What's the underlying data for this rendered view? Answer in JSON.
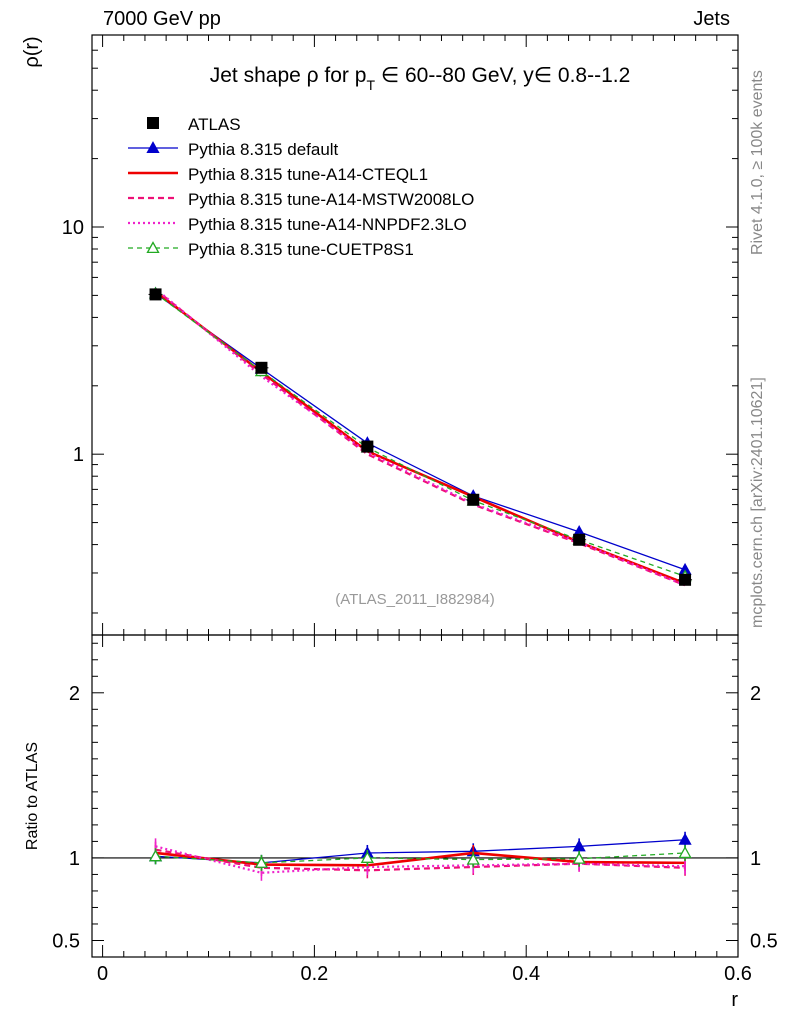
{
  "header": {
    "left": "7000 GeV pp",
    "right": "Jets"
  },
  "side_labels": {
    "rivet": "Rivet 4.1.0, ≥ 100k events",
    "mcplots": "mcplots.cern.ch [arXiv:2401.10621]"
  },
  "colors": {
    "atlas": "#000000",
    "default": "#0000cc",
    "cteql1": "#ee0000",
    "mstw": "#ee1177",
    "nnpdf": "#ee22cc",
    "cuetp8s1": "#22aa22",
    "ref_label": "#999999"
  },
  "chart_data": {
    "type": "line",
    "title": "Jet shape ρ for p_T ∈ 60--80 GeV, y∈ 0.8--1.2",
    "title_parts": {
      "pre": "Jet shape ρ for p",
      "sub": "T",
      "post": " ∈ 60--80 GeV, y∈ 0.8--1.2"
    },
    "ylabel": "ρ(r)",
    "xlabel": "r",
    "ratio_ylabel": "Ratio to ATLAS",
    "ref_label": "(ATLAS_2011_I882984)",
    "x": [
      0.05,
      0.15,
      0.25,
      0.35,
      0.45,
      0.55
    ],
    "xlim": [
      -0.01,
      0.6
    ],
    "ylim": [
      0.16,
      70
    ],
    "yscale": "log",
    "ratio_ylim": [
      0.4,
      2.35
    ],
    "x_ticks": [
      "0",
      "0.2",
      "0.4",
      "0.6"
    ],
    "y_ticks": [
      "1",
      "10"
    ],
    "ratio_ticks": [
      "0.5",
      "1",
      "2"
    ],
    "series": [
      {
        "name": "ATLAS",
        "style": "data",
        "color": "atlas",
        "marker": "square",
        "values": [
          5.05,
          2.4,
          1.08,
          0.63,
          0.42,
          0.28
        ],
        "ratio": [
          1,
          1,
          1,
          1,
          1,
          1
        ]
      },
      {
        "name": "Pythia 8.315 default",
        "style": "solid",
        "color": "default",
        "marker": "triangle",
        "values": [
          5.1,
          2.38,
          1.12,
          0.655,
          0.455,
          0.31
        ],
        "ratio": [
          1.01,
          0.97,
          1.03,
          1.04,
          1.07,
          1.11
        ]
      },
      {
        "name": "Pythia 8.315 tune-A14-CTEQL1",
        "style": "thick",
        "color": "cteql1",
        "marker": "none",
        "values": [
          5.2,
          2.3,
          1.03,
          0.65,
          0.41,
          0.27
        ],
        "ratio": [
          1.03,
          0.96,
          0.955,
          1.03,
          0.975,
          0.97
        ]
      },
      {
        "name": "Pythia 8.315 tune-A14-MSTW2008LO",
        "style": "dashed",
        "color": "mstw",
        "marker": "none",
        "values": [
          5.3,
          2.25,
          1.0,
          0.6,
          0.405,
          0.265
        ],
        "ratio": [
          1.05,
          0.94,
          0.925,
          0.945,
          0.965,
          0.94
        ]
      },
      {
        "name": "Pythia 8.315 tune-A14-NNPDF2.3LO",
        "style": "dotted",
        "color": "nnpdf",
        "marker": "none",
        "values": [
          5.35,
          2.2,
          1.02,
          0.605,
          0.41,
          0.265
        ],
        "ratio": [
          1.07,
          0.91,
          0.945,
          0.955,
          0.965,
          0.95
        ]
      },
      {
        "name": "Pythia 8.315 tune-CUETP8S1",
        "style": "dashed-thin",
        "color": "cuetp8s1",
        "marker": "triangle-open",
        "values": [
          5.1,
          2.32,
          1.07,
          0.625,
          0.42,
          0.29
        ],
        "ratio": [
          1.01,
          0.97,
          1.0,
          0.99,
          0.995,
          1.03
        ]
      }
    ]
  }
}
